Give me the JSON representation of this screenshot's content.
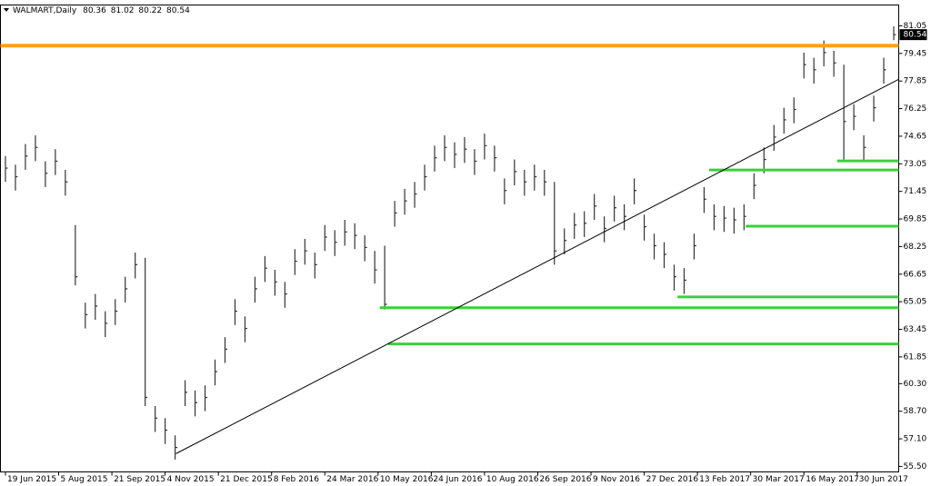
{
  "chart_data": {
    "type": "ohlc",
    "title": "WALMART,Daily",
    "last_bar": {
      "open": 80.36,
      "high": 81.02,
      "low": 80.22,
      "close": 80.54
    },
    "color": "#333333",
    "x": [
      0,
      6,
      12,
      18,
      24,
      30,
      36,
      42,
      48,
      54,
      60,
      66,
      72,
      78,
      84,
      90,
      96,
      102,
      108,
      114,
      120,
      126,
      132,
      138,
      144,
      150,
      156,
      162,
      168,
      174,
      180,
      186,
      192,
      198,
      204,
      210,
      216,
      222,
      228,
      234,
      240,
      246,
      252,
      258,
      264,
      270,
      276,
      282,
      288,
      294,
      300,
      306,
      312,
      318,
      324,
      330,
      336,
      342,
      348,
      354,
      360,
      366,
      372,
      378,
      384,
      390,
      396,
      402,
      408,
      414,
      420,
      426,
      432,
      438,
      444,
      450,
      456,
      462,
      468,
      474,
      480,
      486,
      492,
      498,
      504,
      510,
      516,
      522,
      528,
      534
    ],
    "high": [
      73.5,
      73.0,
      74.2,
      74.7,
      73.2,
      73.9,
      72.7,
      69.5,
      65.0,
      65.5,
      64.5,
      65.2,
      66.5,
      67.9,
      67.6,
      59.0,
      58.3,
      57.3,
      60.5,
      59.9,
      60.2,
      61.7,
      63.0,
      65.2,
      64.2,
      66.5,
      67.7,
      66.9,
      66.2,
      68.1,
      68.7,
      67.9,
      69.5,
      69.2,
      69.8,
      69.6,
      68.9,
      68.0,
      68.3,
      70.9,
      71.6,
      72.0,
      73.0,
      74.1,
      74.7,
      74.3,
      74.6,
      73.9,
      74.8,
      74.1,
      72.2,
      73.3,
      72.7,
      73.0,
      72.7,
      72.0,
      69.3,
      70.2,
      70.3,
      71.3,
      70.0,
      71.2,
      70.7,
      72.2,
      70.1,
      69.0,
      68.5,
      67.2,
      67.0,
      69.0,
      71.7,
      70.7,
      70.6,
      70.5,
      70.7,
      72.5,
      74.0,
      75.3,
      76.3,
      76.9,
      79.5,
      79.2,
      80.2,
      79.6,
      78.8,
      76.5,
      74.7,
      77.0,
      79.2,
      81.02
    ],
    "low": [
      72.0,
      71.5,
      72.7,
      73.2,
      71.7,
      72.4,
      71.2,
      66.0,
      63.5,
      64.0,
      63.0,
      63.7,
      65.0,
      66.4,
      59.0,
      57.5,
      56.8,
      55.9,
      59.0,
      58.4,
      58.7,
      60.2,
      61.5,
      63.7,
      62.7,
      65.0,
      66.2,
      65.4,
      64.7,
      66.6,
      67.2,
      66.4,
      68.0,
      67.7,
      68.3,
      68.1,
      67.4,
      66.1,
      64.6,
      69.4,
      70.1,
      70.5,
      71.5,
      72.6,
      73.2,
      72.8,
      73.1,
      72.4,
      73.3,
      72.6,
      70.7,
      71.8,
      71.2,
      71.5,
      71.2,
      67.2,
      67.8,
      68.7,
      68.8,
      69.8,
      68.5,
      69.7,
      69.2,
      70.7,
      68.6,
      67.5,
      67.0,
      65.7,
      65.5,
      67.5,
      70.2,
      69.2,
      69.1,
      69.0,
      69.2,
      71.0,
      72.5,
      73.8,
      74.8,
      75.4,
      78.0,
      77.7,
      78.7,
      78.1,
      73.3,
      75.0,
      73.2,
      75.5,
      77.7,
      80.22
    ],
    "close": [
      72.8,
      72.3,
      73.5,
      74.0,
      72.5,
      73.2,
      72.0,
      66.5,
      64.3,
      64.8,
      63.8,
      64.5,
      65.8,
      67.2,
      59.5,
      58.3,
      57.6,
      56.6,
      59.8,
      59.2,
      59.5,
      61.0,
      62.3,
      64.5,
      63.5,
      65.8,
      67.0,
      66.2,
      65.5,
      67.4,
      68.0,
      67.2,
      68.8,
      68.5,
      69.1,
      68.9,
      68.2,
      66.9,
      64.9,
      70.2,
      70.9,
      71.3,
      72.3,
      73.4,
      74.0,
      73.6,
      73.9,
      73.2,
      74.1,
      73.4,
      71.5,
      72.6,
      72.0,
      72.3,
      72.0,
      68.0,
      68.6,
      69.5,
      69.6,
      70.6,
      69.3,
      70.5,
      70.0,
      71.5,
      69.4,
      68.3,
      67.8,
      66.5,
      66.3,
      68.3,
      71.0,
      70.0,
      69.9,
      69.8,
      70.0,
      71.8,
      73.3,
      74.6,
      75.6,
      76.2,
      78.8,
      78.5,
      79.5,
      78.9,
      75.5,
      75.8,
      74.0,
      76.3,
      78.5,
      80.54
    ],
    "xlim": [
      -3,
      537
    ],
    "ylim": [
      55.18,
      82.26
    ],
    "xticks": [
      {
        "value": 0,
        "label": "19 Jun 2015"
      },
      {
        "value": 32,
        "label": "5 Aug 2015"
      },
      {
        "value": 64,
        "label": "21 Sep 2015"
      },
      {
        "value": 96,
        "label": "4 Nov 2015"
      },
      {
        "value": 128,
        "label": "21 Dec 2015"
      },
      {
        "value": 160,
        "label": "8 Feb 2016"
      },
      {
        "value": 192,
        "label": "24 Mar 2016"
      },
      {
        "value": 224,
        "label": "10 May 2016"
      },
      {
        "value": 256,
        "label": "24 Jun 2016"
      },
      {
        "value": 288,
        "label": "10 Aug 2016"
      },
      {
        "value": 320,
        "label": "26 Sep 2016"
      },
      {
        "value": 352,
        "label": "9 Nov 2016"
      },
      {
        "value": 384,
        "label": "27 Dec 2016"
      },
      {
        "value": 416,
        "label": "13 Feb 2017"
      },
      {
        "value": 448,
        "label": "30 Mar 2017"
      },
      {
        "value": 480,
        "label": "16 May 2017"
      },
      {
        "value": 512,
        "label": "30 Jun 2017"
      }
    ],
    "yticks": [
      81.05,
      79.45,
      77.85,
      76.25,
      74.65,
      73.05,
      71.45,
      69.85,
      68.25,
      66.65,
      65.05,
      63.45,
      61.85,
      {
        "value": 60.3,
        "label": "60.30"
      },
      {
        "value": 58.7,
        "label": "58.70"
      },
      {
        "value": 57.1,
        "label": "57.10"
      },
      {
        "value": 55.5,
        "label": "55.50"
      }
    ],
    "resistance": {
      "value": 79.9,
      "color": "#f5a31a"
    },
    "supports": [
      {
        "x": 423,
        "value": 72.69,
        "color": "#3ccf3c"
      },
      {
        "x": 500,
        "value": 73.22,
        "color": "#3ccf3c"
      },
      {
        "x": 445,
        "value": 69.43,
        "color": "#3ccf3c"
      },
      {
        "x": 404,
        "value": 65.33,
        "color": "#3ccf3c"
      },
      {
        "x": 225,
        "value": 64.7,
        "color": "#3ccf3c"
      },
      {
        "x": 230,
        "value": 62.6,
        "color": "#3ccf3c"
      }
    ],
    "trendline": {
      "x": [
        102.5,
        537
      ],
      "y": [
        56.24,
        77.95
      ],
      "color": "#000000"
    }
  }
}
